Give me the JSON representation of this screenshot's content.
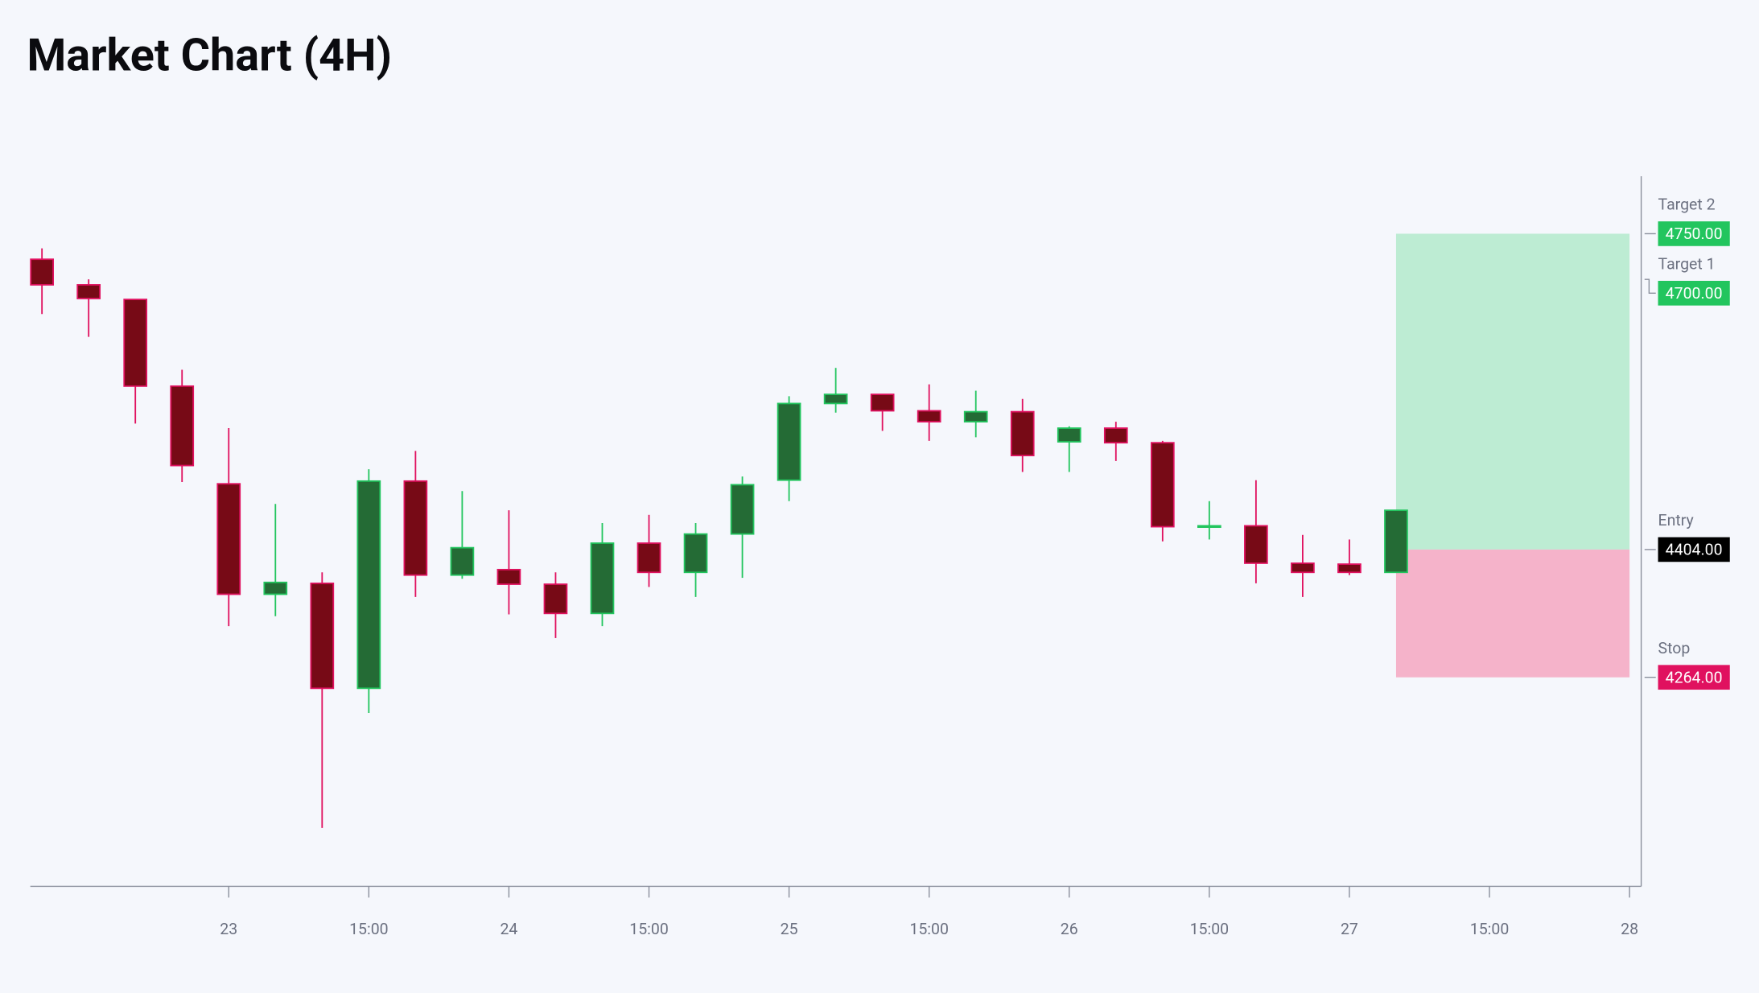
{
  "chart_data": {
    "type": "candlestick",
    "title": "Market Chart (4H)",
    "x": [
      0,
      1,
      2,
      3,
      4,
      5,
      6,
      7,
      8,
      9,
      10,
      11,
      12,
      13,
      14,
      15,
      16,
      17,
      18,
      19,
      20,
      21,
      22,
      23,
      24,
      25,
      26,
      27,
      28,
      29
    ],
    "open": [
      4722,
      4694,
      4678,
      4583,
      4476,
      4355,
      4367,
      4252,
      4479,
      4376,
      4382,
      4366,
      4334,
      4411,
      4379,
      4421,
      4480,
      4564,
      4574,
      4556,
      4544,
      4555,
      4522,
      4537,
      4521,
      4429,
      4430,
      4389,
      4388,
      4379
    ],
    "high": [
      4734,
      4700,
      4678,
      4601,
      4537,
      4454,
      4379,
      4492,
      4512,
      4468,
      4447,
      4379,
      4433,
      4442,
      4433,
      4484,
      4572,
      4603,
      4574,
      4585,
      4578,
      4569,
      4539,
      4544,
      4523,
      4457,
      4480,
      4420,
      4415,
      4447
    ],
    "low": [
      4662,
      4637,
      4542,
      4478,
      4320,
      4331,
      4099,
      4225,
      4352,
      4372,
      4333,
      4307,
      4320,
      4363,
      4352,
      4373,
      4457,
      4554,
      4534,
      4523,
      4527,
      4489,
      4489,
      4501,
      4413,
      4415,
      4367,
      4352,
      4376,
      4379
    ],
    "close": [
      4694,
      4679,
      4583,
      4496,
      4355,
      4368,
      4252,
      4479,
      4376,
      4406,
      4366,
      4334,
      4411,
      4379,
      4421,
      4475,
      4564,
      4574,
      4556,
      4544,
      4555,
      4507,
      4537,
      4521,
      4429,
      4430,
      4389,
      4379,
      4379,
      4447
    ],
    "up_color": "#22c55e",
    "down_color": "#e0115f",
    "xlim": [
      -0.25,
      34.25
    ],
    "xticks": [
      {
        "value": 4,
        "label": "23"
      },
      {
        "value": 7,
        "label": "15:00"
      },
      {
        "value": 10,
        "label": "24"
      },
      {
        "value": 13,
        "label": "15:00"
      },
      {
        "value": 16,
        "label": "25"
      },
      {
        "value": 19,
        "label": "15:00"
      },
      {
        "value": 22,
        "label": "26"
      },
      {
        "value": 25,
        "label": "15:00"
      },
      {
        "value": 28,
        "label": "27"
      },
      {
        "value": 31,
        "label": "15:00"
      },
      {
        "value": 34,
        "label": "28"
      }
    ],
    "ylim": [
      4035,
      4813
    ],
    "levels": [
      {
        "name": "Target 2",
        "value": 4750,
        "value_label": "4750.00",
        "color": "#22c55e"
      },
      {
        "name": "Target 1",
        "value": 4700,
        "value_label": "4700.00",
        "color": "#22c55e"
      },
      {
        "name": "Entry",
        "value": 4404,
        "value_label": "4404.00",
        "color": "#000000"
      },
      {
        "name": "Stop",
        "value": 4264,
        "value_label": "4264.00",
        "color": "#e0115f"
      }
    ]
  }
}
